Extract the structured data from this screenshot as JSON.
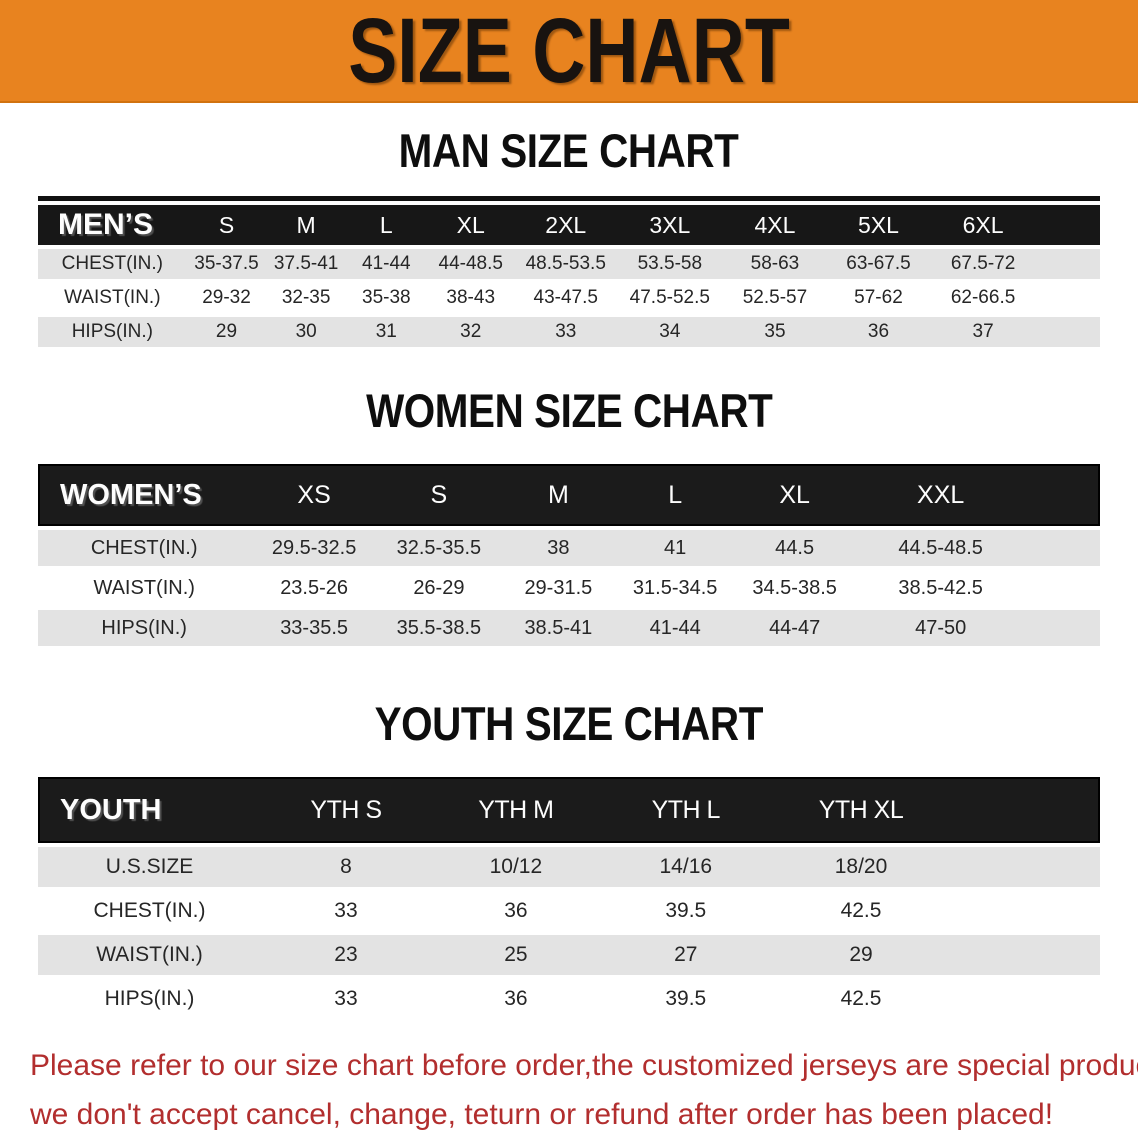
{
  "banner": {
    "title": "SIZE CHART"
  },
  "colors": {
    "banner_bg": "#E8831F",
    "header_bar": "#1B1B1B",
    "row_stripe": "#E3E3E3",
    "footer_text": "#B22E2E"
  },
  "sections": [
    {
      "heading": "MAN SIZE CHART",
      "table": {
        "header_label": "MEN’S",
        "columns": [
          "S",
          "M",
          "L",
          "XL",
          "2XL",
          "3XL",
          "4XL",
          "5XL",
          "6XL"
        ],
        "rows": [
          {
            "label": "CHEST(IN.)",
            "values": [
              "35-37.5",
              "37.5-41",
              "41-44",
              "44-48.5",
              "48.5-53.5",
              "53.5-58",
              "58-63",
              "63-67.5",
              "67.5-72"
            ]
          },
          {
            "label": "WAIST(IN.)",
            "values": [
              "29-32",
              "32-35",
              "35-38",
              "38-43",
              "43-47.5",
              "47.5-52.5",
              "52.5-57",
              "57-62",
              "62-66.5"
            ]
          },
          {
            "label": "HIPS(IN.)",
            "values": [
              "29",
              "30",
              "31",
              "32",
              "33",
              "34",
              "35",
              "36",
              "37"
            ]
          }
        ]
      }
    },
    {
      "heading": "WOMEN SIZE CHART",
      "table": {
        "header_label": "WOMEN’S",
        "columns": [
          "XS",
          "S",
          "M",
          "L",
          "XL",
          "XXL"
        ],
        "rows": [
          {
            "label": "CHEST(IN.)",
            "values": [
              "29.5-32.5",
              "32.5-35.5",
              "38",
              "41",
              "44.5",
              "44.5-48.5"
            ]
          },
          {
            "label": "WAIST(IN.)",
            "values": [
              "23.5-26",
              "26-29",
              "29-31.5",
              "31.5-34.5",
              "34.5-38.5",
              "38.5-42.5"
            ]
          },
          {
            "label": "HIPS(IN.)",
            "values": [
              "33-35.5",
              "35.5-38.5",
              "38.5-41",
              "41-44",
              "44-47",
              "47-50"
            ]
          }
        ]
      }
    },
    {
      "heading": "YOUTH SIZE CHART",
      "table": {
        "header_label": "YOUTH",
        "columns": [
          "YTH S",
          "YTH M",
          "YTH L",
          "YTH XL"
        ],
        "rows": [
          {
            "label": "U.S.SIZE",
            "values": [
              "8",
              "10/12",
              "14/16",
              "18/20"
            ]
          },
          {
            "label": "CHEST(IN.)",
            "values": [
              "33",
              "36",
              "39.5",
              "42.5"
            ]
          },
          {
            "label": "WAIST(IN.)",
            "values": [
              "23",
              "25",
              "27",
              "29"
            ]
          },
          {
            "label": "HIPS(IN.)",
            "values": [
              "33",
              "36",
              "39.5",
              "42.5"
            ]
          }
        ]
      }
    }
  ],
  "footer": {
    "lines": [
      "Please refer to our size chart before order,the customized jerseys are special products,",
      "we don't accept cancel, change, teturn or refund after order has been placed!"
    ]
  }
}
